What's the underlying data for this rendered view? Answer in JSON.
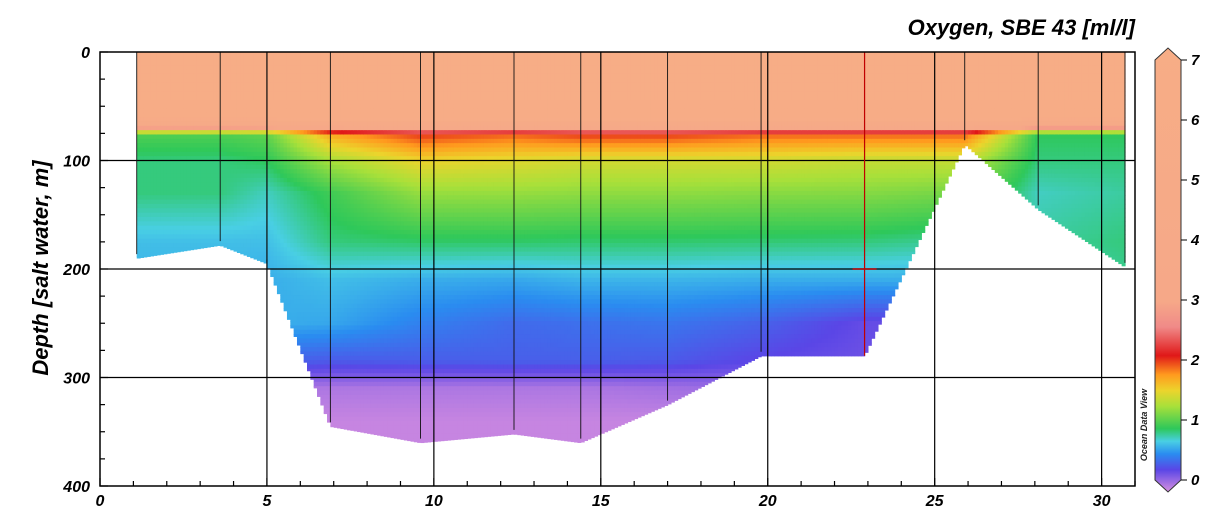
{
  "chart_data": {
    "type": "heatmap",
    "title": "Oxygen, SBE 43 [ml/l]",
    "ylabel": "Depth [salt water, m]",
    "xlabel": "",
    "xlim": [
      0,
      31
    ],
    "ylim": [
      0,
      400
    ],
    "y_inverted": true,
    "x_ticks": [
      0,
      5,
      10,
      15,
      20,
      25,
      30
    ],
    "y_ticks": [
      0,
      100,
      200,
      300,
      400
    ],
    "grid": true,
    "colorbar": {
      "ticks": [
        0,
        1,
        2,
        3,
        4,
        5,
        6,
        7
      ],
      "range": [
        0,
        7
      ],
      "colors": [
        "#d890e0",
        "#5a46e6",
        "#2a8cf0",
        "#49cfe4",
        "#2ec85a",
        "#a8e03a",
        "#ecd42c",
        "#ff9a1e",
        "#e01818",
        "#f08a88",
        "#f6a888",
        "#f7ad86"
      ],
      "stops_values": [
        0.0,
        0.35,
        0.6,
        0.8,
        1.0,
        1.35,
        1.6,
        1.85,
        2.15,
        2.6,
        3.0,
        7.0
      ]
    },
    "watermark": "Ocean Data View",
    "stations_x": [
      1.1,
      3.6,
      5.0,
      6.9,
      9.6,
      12.4,
      14.4,
      17.0,
      19.8,
      22.9,
      25.9,
      28.1,
      30.7
    ],
    "station_max_depth": [
      190,
      178,
      195,
      345,
      360,
      352,
      360,
      325,
      280,
      280,
      85,
      145,
      198
    ],
    "depth_levels": [
      0,
      60,
      75,
      100,
      130,
      175,
      210,
      250,
      285,
      310,
      340,
      370,
      400
    ],
    "values": [
      [
        6.9,
        6.9,
        6.9,
        6.9,
        6.9,
        6.9,
        6.9,
        6.9,
        6.9,
        6.9,
        6.9,
        6.9,
        6.9
      ],
      [
        6.5,
        6.5,
        6.5,
        6.5,
        6.5,
        6.5,
        6.5,
        6.5,
        6.5,
        6.5,
        6.5,
        6.5,
        6.5
      ],
      [
        1.1,
        1.1,
        1.15,
        1.8,
        2.1,
        2.0,
        2.1,
        2.1,
        2.0,
        2.0,
        2.0,
        1.0,
        1.0
      ],
      [
        0.95,
        0.95,
        1.0,
        1.35,
        1.6,
        1.55,
        1.5,
        1.5,
        1.5,
        1.45,
        1.45,
        0.95,
        0.95
      ],
      [
        0.95,
        0.95,
        0.85,
        1.05,
        1.3,
        1.3,
        1.28,
        1.28,
        1.26,
        1.25,
        1.2,
        0.85,
        0.9
      ],
      [
        0.75,
        0.75,
        0.75,
        0.95,
        0.98,
        0.98,
        0.97,
        0.97,
        0.96,
        0.95,
        0.9,
        0.9,
        0.95
      ],
      [
        0.72,
        0.72,
        0.7,
        0.75,
        0.7,
        0.68,
        0.72,
        0.72,
        0.7,
        0.7,
        0.7,
        0.8,
        0.92
      ],
      [
        0.72,
        0.72,
        0.7,
        0.68,
        0.56,
        0.48,
        0.5,
        0.52,
        0.45,
        0.32,
        0.32,
        0.8,
        0.92
      ],
      [
        0.7,
        0.7,
        0.46,
        0.42,
        0.43,
        0.44,
        0.44,
        0.42,
        0.34,
        0.3,
        0.3,
        0.8,
        0.92
      ],
      [
        0.1,
        0.1,
        0.12,
        0.12,
        0.12,
        0.12,
        0.12,
        0.15,
        0.18,
        0.2,
        0.2,
        0.8,
        0.92
      ],
      [
        0.05,
        0.05,
        0.05,
        0.05,
        0.05,
        0.05,
        0.05,
        0.05,
        0.05,
        0.05,
        0.05,
        0.8,
        0.92
      ],
      [
        0.05,
        0.05,
        0.05,
        0.05,
        0.05,
        0.05,
        0.05,
        0.05,
        0.05,
        0.05,
        0.05,
        0.8,
        0.92
      ],
      [
        0.05,
        0.05,
        0.05,
        0.05,
        0.05,
        0.05,
        0.05,
        0.05,
        0.05,
        0.05,
        0.05,
        0.8,
        0.92
      ]
    ],
    "marker": {
      "x": 22.9,
      "y": 200
    }
  }
}
